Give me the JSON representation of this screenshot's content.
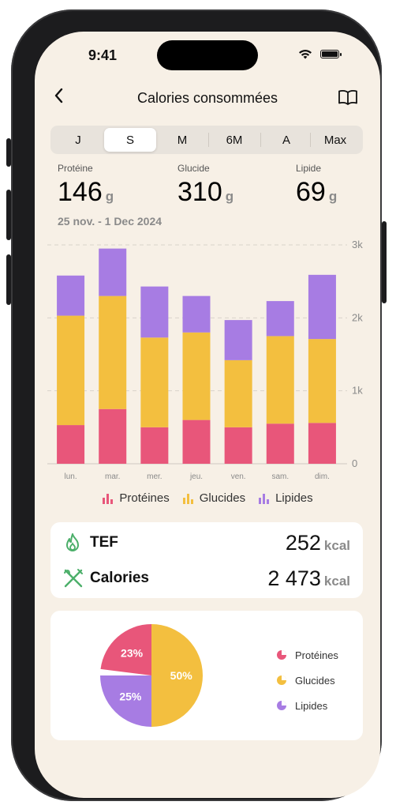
{
  "status": {
    "time": "9:41"
  },
  "nav": {
    "title": "Calories consommées"
  },
  "segments": [
    "J",
    "S",
    "M",
    "6M",
    "A",
    "Max"
  ],
  "selected_segment": "S",
  "stats": [
    {
      "label": "Protéine",
      "value": "146",
      "unit": "g"
    },
    {
      "label": "Glucide",
      "value": "310",
      "unit": "g"
    },
    {
      "label": "Lipide",
      "value": "69",
      "unit": "g"
    }
  ],
  "date_range": "25 nov. - 1 Dec 2024",
  "colors": {
    "proteines": "#e8567a",
    "glucides": "#f3bf3f",
    "lipides": "#a77ce3",
    "background": "#f7f0e6"
  },
  "chart_data": {
    "type": "bar",
    "stacked": true,
    "categories": [
      "lun.",
      "mar.",
      "mer.",
      "jeu.",
      "ven.",
      "sam.",
      "dim."
    ],
    "series": [
      {
        "name": "Protéines",
        "values": [
          530,
          750,
          500,
          600,
          500,
          550,
          560
        ]
      },
      {
        "name": "Glucides",
        "values": [
          1500,
          1550,
          1230,
          1200,
          920,
          1200,
          1150
        ]
      },
      {
        "name": "Lipides",
        "values": [
          550,
          650,
          700,
          500,
          550,
          480,
          880
        ]
      }
    ],
    "ylim": [
      0,
      3000
    ],
    "yticks": [
      0,
      1000,
      2000,
      3000
    ],
    "ytick_labels": [
      "0",
      "1k",
      "2k",
      "3k"
    ],
    "grid": true,
    "legend_position": "bottom"
  },
  "summary": {
    "tef": {
      "label": "TEF",
      "value": "252",
      "unit": "kcal"
    },
    "calories": {
      "label": "Calories",
      "value": "2 473",
      "unit": "kcal"
    }
  },
  "pie": {
    "slices": [
      {
        "name": "Protéines",
        "percent": 23,
        "label": "23%"
      },
      {
        "name": "Glucides",
        "percent": 50,
        "label": "50%"
      },
      {
        "name": "Lipides",
        "percent": 25,
        "label": "25%"
      }
    ]
  },
  "icons": [
    "chevron-left-icon",
    "book-icon",
    "flame-icon",
    "fork-knife-icon",
    "wifi-icon",
    "battery-icon"
  ]
}
